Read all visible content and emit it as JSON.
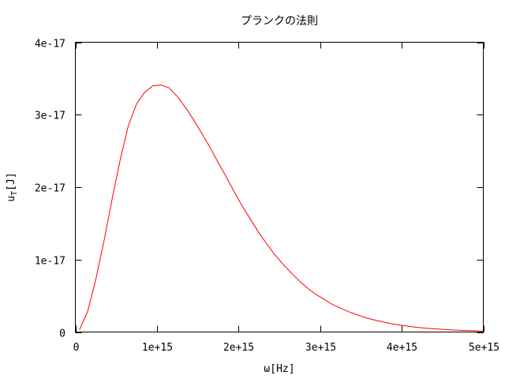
{
  "chart_data": {
    "type": "line",
    "title": "プランクの法則",
    "xlabel": "ω[Hz]",
    "ylabel_main": "u",
    "ylabel_sub": "T",
    "ylabel_unit": "[J]",
    "xlim": [
      0,
      5000000000000000.0
    ],
    "ylim": [
      0,
      4e-17
    ],
    "x_ticks": [
      0,
      1000000000000000.0,
      2000000000000000.0,
      3000000000000000.0,
      4000000000000000.0,
      5000000000000000.0
    ],
    "x_tick_labels": [
      "0",
      "1e+15",
      "2e+15",
      "3e+15",
      "4e+15",
      "5e+15"
    ],
    "y_ticks": [
      0,
      1e-17,
      2e-17,
      3e-17,
      4e-17
    ],
    "y_tick_labels": [
      "0",
      "1e-17",
      "2e-17",
      "3e-17",
      "4e-17"
    ],
    "grid": false,
    "legend": "none",
    "series": [
      {
        "color": "#ff0000",
        "x": [
          50000000000000.0,
          150000000000000.0,
          250000000000000.0,
          350000000000000.0,
          450000000000000.0,
          550000000000000.0,
          650000000000000.0,
          750000000000000.0,
          850000000000000.0,
          950000000000000.0,
          1050000000000000.0,
          1150000000000000.0,
          1250000000000000.0,
          1350000000000000.0,
          1450000000000000.0,
          1550000000000000.0,
          1650000000000000.0,
          1750000000000000.0,
          1850000000000000.0,
          1950000000000000.0,
          2050000000000000.0,
          2150000000000000.0,
          2250000000000000.0,
          2350000000000000.0,
          2450000000000000.0,
          2550000000000000.0,
          2650000000000000.0,
          2750000000000000.0,
          2850000000000000.0,
          2950000000000000.0,
          3050000000000000.0,
          3150000000000000.0,
          3250000000000000.0,
          3350000000000000.0,
          3450000000000000.0,
          3550000000000000.0,
          3650000000000000.0,
          3750000000000000.0,
          3850000000000000.0,
          3950000000000000.0,
          4050000000000000.0,
          4150000000000000.0,
          4250000000000000.0,
          4350000000000000.0,
          4450000000000000.0,
          4550000000000000.0,
          4650000000000000.0,
          4750000000000000.0,
          4850000000000000.0,
          4950000000000000.0,
          5000000000000000.0
        ],
        "y": [
          3e-19,
          2.8e-18,
          7.2e-18,
          1.25e-17,
          1.83e-17,
          2.38e-17,
          2.85e-17,
          3.15e-17,
          3.31e-17,
          3.4e-17,
          3.41e-17,
          3.37e-17,
          3.25e-17,
          3.1e-17,
          2.93e-17,
          2.74e-17,
          2.55e-17,
          2.34e-17,
          2.14e-17,
          1.93e-17,
          1.73e-17,
          1.55e-17,
          1.37e-17,
          1.21e-17,
          1.06e-17,
          9.3e-18,
          8.1e-18,
          7e-18,
          6e-18,
          5.2e-18,
          4.5e-18,
          3.8e-18,
          3.3e-18,
          2.8e-18,
          2.4e-18,
          2e-18,
          1.7e-18,
          1.45e-18,
          1.2e-18,
          1e-18,
          8.5e-19,
          7e-19,
          5.8e-19,
          4.8e-19,
          4e-19,
          3.3e-19,
          2.7e-19,
          2.2e-19,
          1.8e-19,
          1.5e-19,
          1.3e-19
        ]
      }
    ]
  }
}
